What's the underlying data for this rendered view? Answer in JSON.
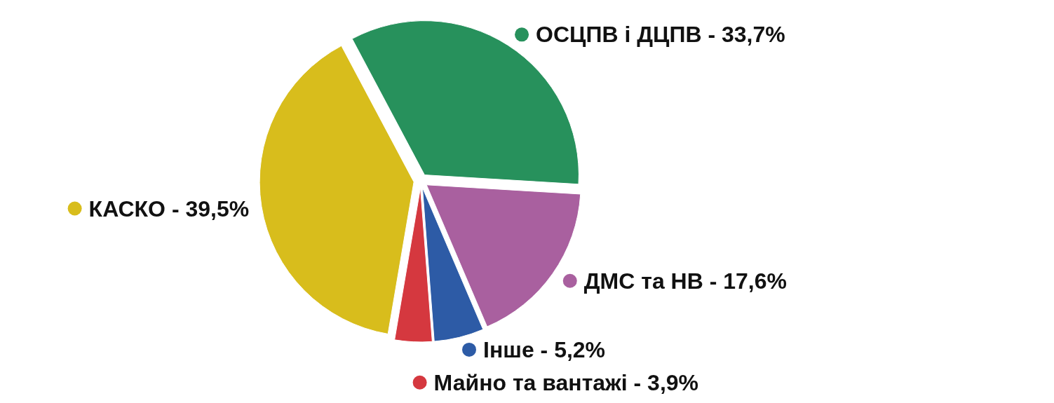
{
  "chart_data": {
    "type": "pie",
    "categories": [
      "ОСЦПВ і ДЦПВ",
      "ДМС та НВ",
      "Інше",
      "Майно та вантажі",
      "КАСКО"
    ],
    "values": [
      33.7,
      17.6,
      5.2,
      3.9,
      39.5
    ],
    "colors": [
      "#27915c",
      "#a9609f",
      "#2d5ba6",
      "#d5383f",
      "#d8bd1c"
    ],
    "value_labels": [
      "33,7%",
      "17,6%",
      "5,2%",
      "3,9%",
      "39,5%"
    ],
    "legend": "right"
  }
}
